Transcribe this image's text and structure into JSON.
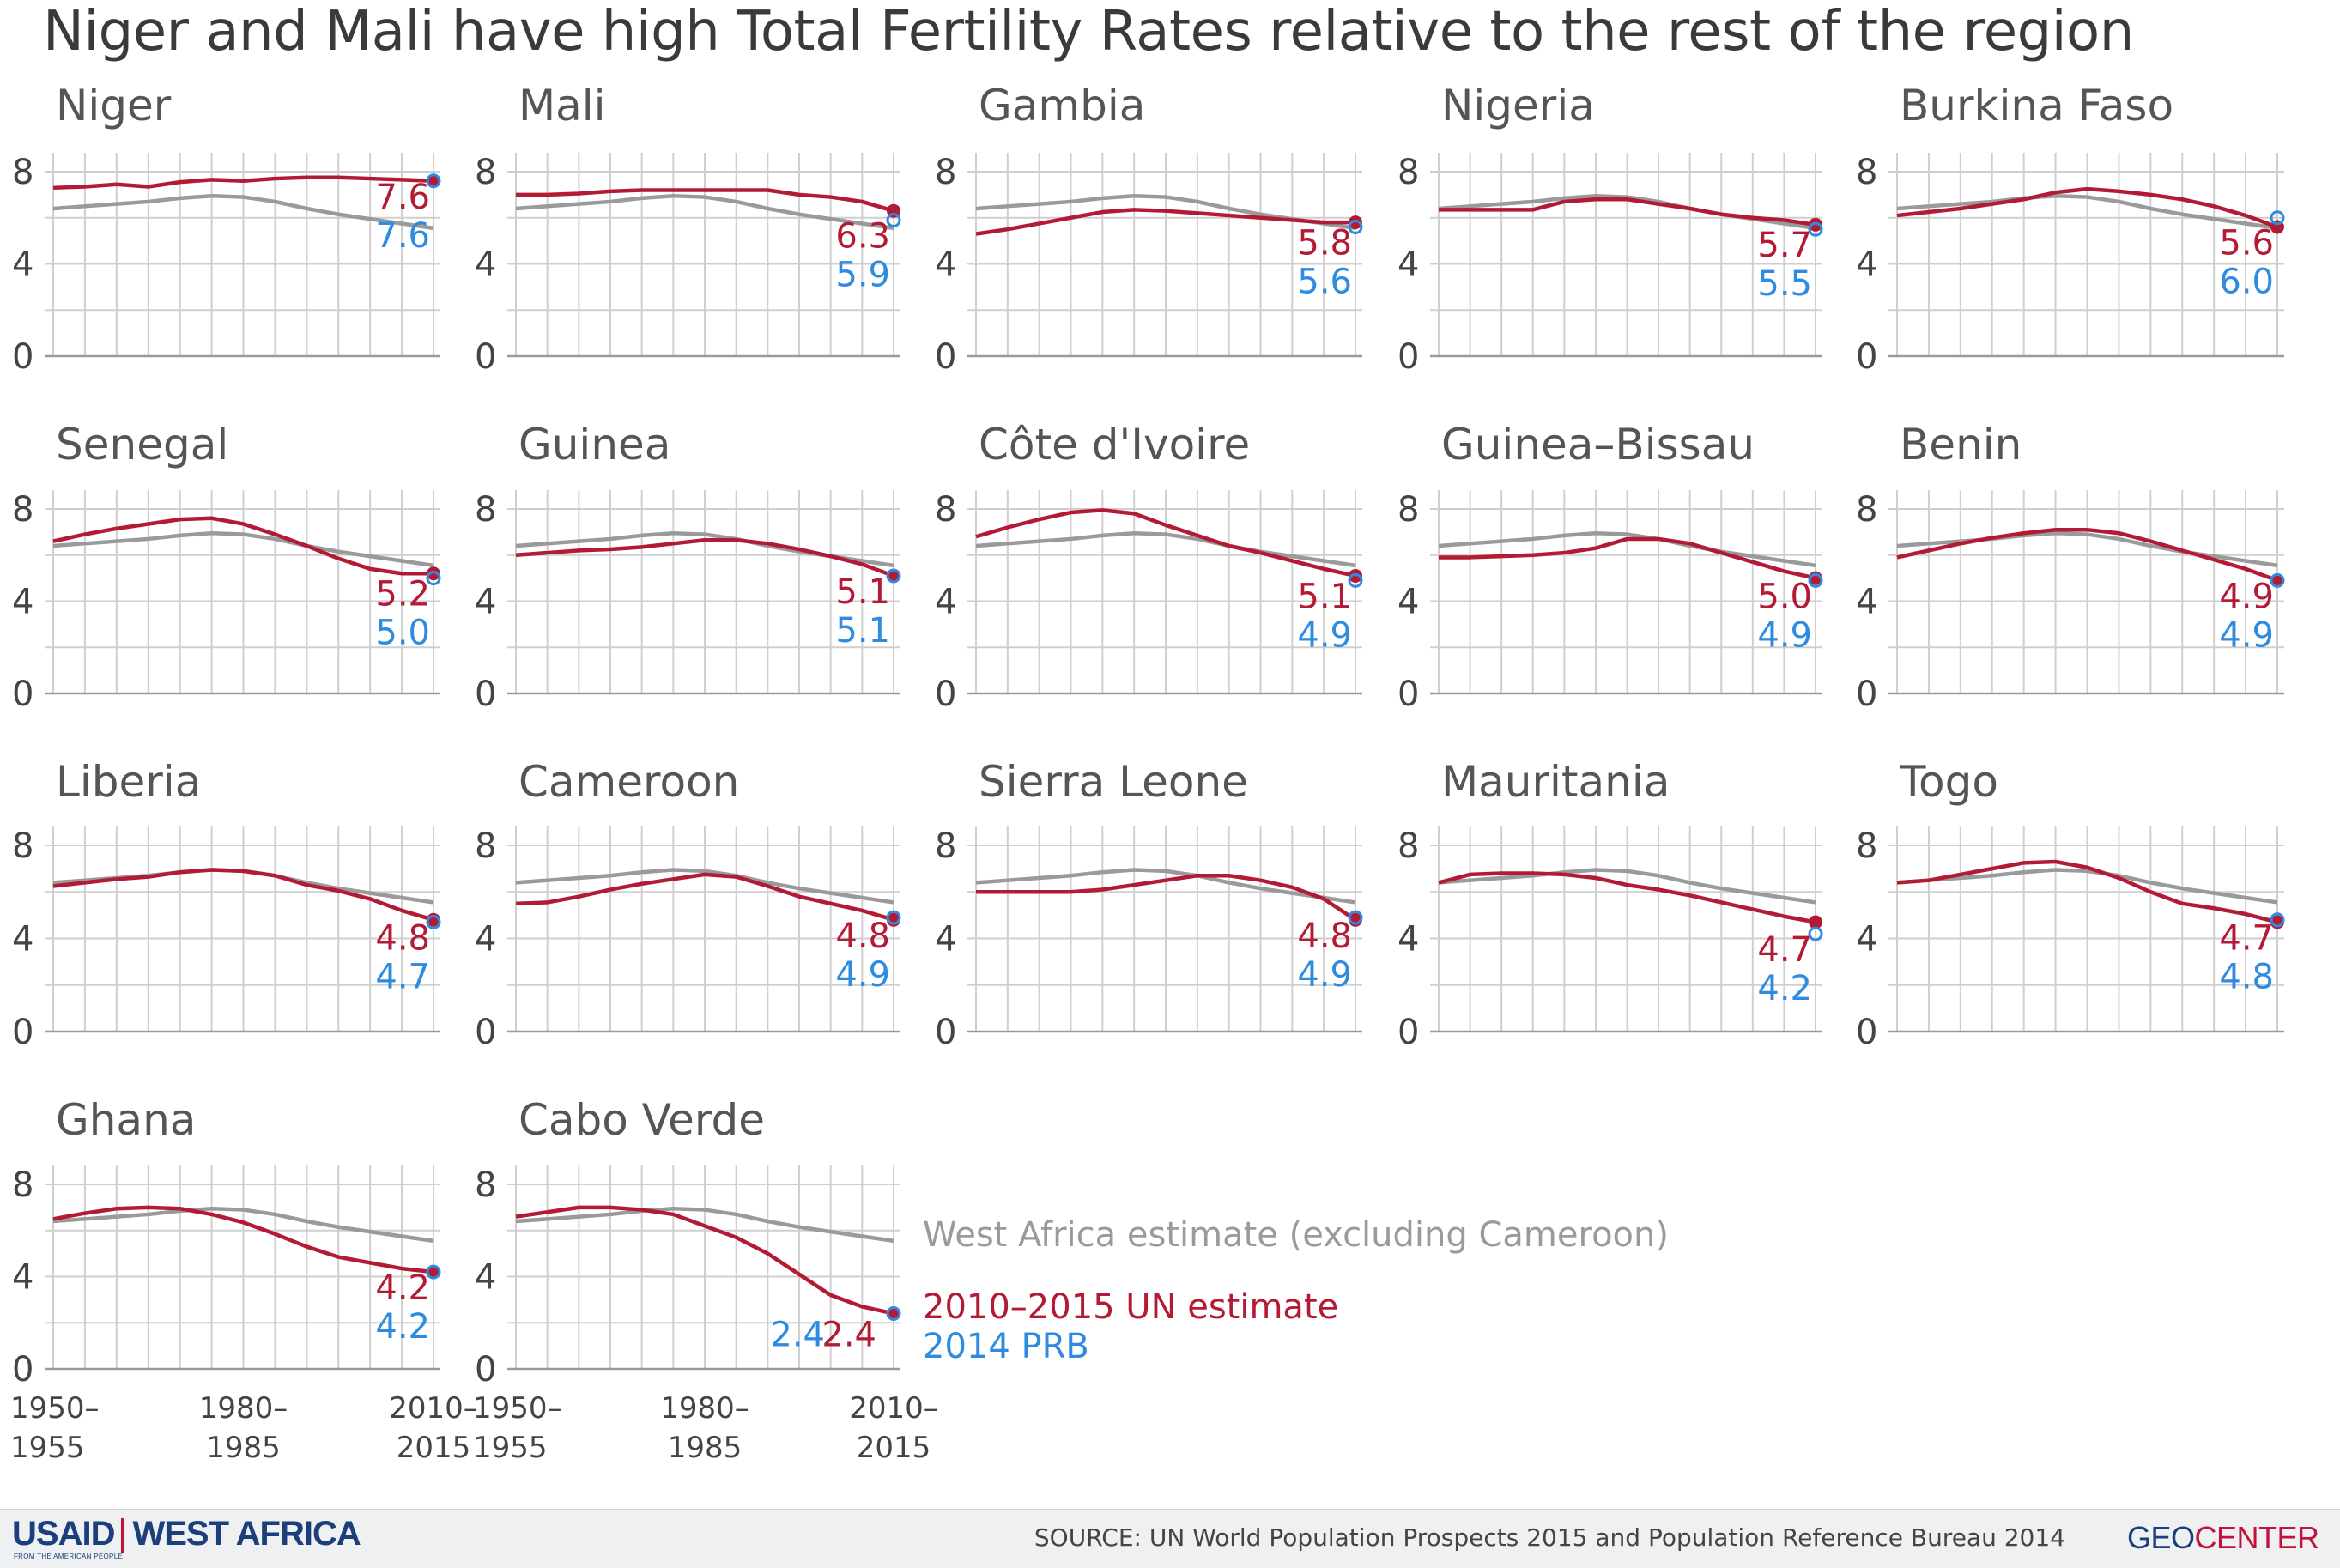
{
  "title": "Niger and Mali have high Total Fertility Rates relative to the rest of the region",
  "colors": {
    "un": "#b31b34",
    "prb": "#2e8be0",
    "region": "#9a9a9a",
    "grid": "#cfcfcf",
    "axis": "#444444",
    "panelTitle": "#555555"
  },
  "legend": {
    "region": "West Africa estimate (excluding Cameroon)",
    "un": "2010–2015 UN estimate",
    "prb": "2014 PRB"
  },
  "footer": {
    "usaid": "USAID",
    "usaid_tagline": "FROM THE AMERICAN PEOPLE",
    "region_name": "WEST AFRICA",
    "source": "SOURCE: UN World Population Prospects 2015 and Population Reference Bureau 2014",
    "geocenter_main": "GEO",
    "geocenter_accent": "CENTER"
  },
  "chart_data": {
    "type": "line",
    "ylim": [
      0,
      8
    ],
    "yticks": [
      "0",
      "4",
      "8"
    ],
    "x": [
      "1950–1955",
      "1955–1960",
      "1960–1965",
      "1965–1970",
      "1970–1975",
      "1975–1980",
      "1980–1985",
      "1985–1990",
      "1990–1995",
      "1995–2000",
      "2000–2005",
      "2005–2010",
      "2010–2015"
    ],
    "xtick_labels": [
      [
        "1950–",
        "1955"
      ],
      [
        "1980–",
        "1985"
      ],
      [
        "2010–",
        "2015"
      ]
    ],
    "region_series": [
      6.4,
      6.5,
      6.6,
      6.7,
      6.85,
      6.95,
      6.9,
      6.7,
      6.4,
      6.15,
      5.95,
      5.75,
      5.55
    ],
    "panels": [
      {
        "name": "Niger",
        "un": [
          7.3,
          7.35,
          7.45,
          7.35,
          7.55,
          7.65,
          7.6,
          7.7,
          7.75,
          7.75,
          7.7,
          7.65,
          7.6
        ],
        "un_label": "7.6",
        "prb": 7.6,
        "prb_label": "7.6"
      },
      {
        "name": "Mali",
        "un": [
          7.0,
          7.0,
          7.05,
          7.15,
          7.2,
          7.2,
          7.2,
          7.2,
          7.2,
          7.0,
          6.9,
          6.7,
          6.3
        ],
        "un_label": "6.3",
        "prb": 5.9,
        "prb_label": "5.9"
      },
      {
        "name": "Gambia",
        "un": [
          5.3,
          5.5,
          5.75,
          6.0,
          6.25,
          6.35,
          6.3,
          6.2,
          6.1,
          6.0,
          5.9,
          5.8,
          5.8
        ],
        "un_label": "5.8",
        "prb": 5.6,
        "prb_label": "5.6"
      },
      {
        "name": "Nigeria",
        "un": [
          6.35,
          6.35,
          6.35,
          6.35,
          6.7,
          6.8,
          6.8,
          6.6,
          6.4,
          6.15,
          6.0,
          5.9,
          5.7
        ],
        "un_label": "5.7",
        "prb": 5.5,
        "prb_label": "5.5"
      },
      {
        "name": "Burkina Faso",
        "un": [
          6.1,
          6.25,
          6.4,
          6.6,
          6.8,
          7.1,
          7.25,
          7.15,
          7.0,
          6.8,
          6.5,
          6.1,
          5.6
        ],
        "un_label": "5.6",
        "prb": 6.0,
        "prb_label": "6.0"
      },
      {
        "name": "Senegal",
        "un": [
          6.6,
          6.9,
          7.15,
          7.35,
          7.55,
          7.6,
          7.35,
          6.9,
          6.4,
          5.85,
          5.4,
          5.2,
          5.2
        ],
        "un_label": "5.2",
        "prb": 5.0,
        "prb_label": "5.0"
      },
      {
        "name": "Guinea",
        "un": [
          6.0,
          6.1,
          6.2,
          6.25,
          6.35,
          6.5,
          6.65,
          6.65,
          6.5,
          6.25,
          5.95,
          5.6,
          5.1
        ],
        "un_label": "5.1",
        "prb": 5.1,
        "prb_label": "5.1"
      },
      {
        "name": "Côte d'Ivoire",
        "un": [
          6.8,
          7.2,
          7.55,
          7.85,
          7.95,
          7.8,
          7.3,
          6.85,
          6.4,
          6.1,
          5.75,
          5.4,
          5.1
        ],
        "un_label": "5.1",
        "prb": 4.9,
        "prb_label": "4.9"
      },
      {
        "name": "Guinea–Bissau",
        "un": [
          5.9,
          5.9,
          5.95,
          6.0,
          6.1,
          6.3,
          6.7,
          6.7,
          6.5,
          6.1,
          5.7,
          5.3,
          5.0
        ],
        "un_label": "5.0",
        "prb": 4.9,
        "prb_label": "4.9"
      },
      {
        "name": "Benin",
        "un": [
          5.9,
          6.2,
          6.5,
          6.75,
          6.95,
          7.1,
          7.1,
          6.95,
          6.6,
          6.2,
          5.8,
          5.4,
          4.9
        ],
        "un_label": "4.9",
        "prb": 4.9,
        "prb_label": "4.9"
      },
      {
        "name": "Liberia",
        "un": [
          6.25,
          6.4,
          6.55,
          6.65,
          6.85,
          6.95,
          6.9,
          6.7,
          6.3,
          6.05,
          5.7,
          5.2,
          4.8
        ],
        "un_label": "4.8",
        "prb": 4.7,
        "prb_label": "4.7"
      },
      {
        "name": "Cameroon",
        "un": [
          5.5,
          5.55,
          5.8,
          6.1,
          6.35,
          6.55,
          6.75,
          6.65,
          6.25,
          5.8,
          5.5,
          5.2,
          4.8
        ],
        "un_label": "4.8",
        "prb": 4.9,
        "prb_label": "4.9"
      },
      {
        "name": "Sierra Leone",
        "un": [
          6.0,
          6.0,
          6.0,
          6.0,
          6.1,
          6.3,
          6.5,
          6.7,
          6.7,
          6.5,
          6.2,
          5.7,
          4.8
        ],
        "un_label": "4.8",
        "prb": 4.9,
        "prb_label": "4.9"
      },
      {
        "name": "Mauritania",
        "un": [
          6.4,
          6.75,
          6.8,
          6.8,
          6.75,
          6.6,
          6.3,
          6.1,
          5.85,
          5.55,
          5.25,
          4.95,
          4.7
        ],
        "un_label": "4.7",
        "prb": 4.2,
        "prb_label": "4.2"
      },
      {
        "name": "Togo",
        "un": [
          6.4,
          6.5,
          6.75,
          7.0,
          7.25,
          7.3,
          7.05,
          6.6,
          6.0,
          5.5,
          5.3,
          5.05,
          4.7
        ],
        "un_label": "4.7",
        "prb": 4.8,
        "prb_label": "4.8"
      },
      {
        "name": "Ghana",
        "un": [
          6.5,
          6.75,
          6.95,
          7.0,
          6.95,
          6.7,
          6.35,
          5.85,
          5.3,
          4.85,
          4.6,
          4.35,
          4.2
        ],
        "un_label": "4.2",
        "prb": 4.2,
        "prb_label": "4.2"
      },
      {
        "name": "Cabo Verde",
        "un": [
          6.6,
          6.8,
          7.0,
          7.0,
          6.9,
          6.7,
          6.2,
          5.7,
          5.0,
          4.1,
          3.2,
          2.7,
          2.4
        ],
        "un_label": "2.4",
        "prb": 2.4,
        "prb_label": "2.4"
      }
    ]
  }
}
